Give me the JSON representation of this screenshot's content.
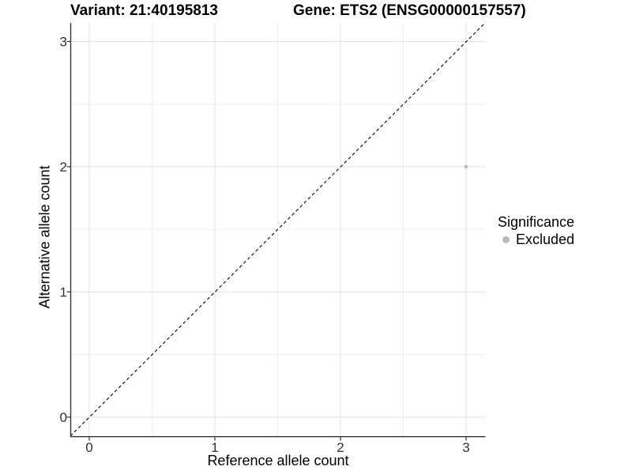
{
  "header": {
    "variant_title": "Variant: 21:40195813",
    "gene_title": "Gene: ETS2 (ENSG00000157557)"
  },
  "axes": {
    "x": {
      "label": "Reference allele count",
      "tick_labels": [
        "0",
        "1",
        "2",
        "3"
      ]
    },
    "y": {
      "label": "Alternative allele count",
      "tick_labels": [
        "0",
        "1",
        "2",
        "3"
      ]
    }
  },
  "legend": {
    "title": "Significance",
    "items": [
      {
        "label": "Excluded",
        "color": "#bababa"
      }
    ]
  },
  "colors": {
    "background": "#ffffff",
    "grid_major": "#e2e2e2",
    "grid_minor": "#eeeeee",
    "axis_line": "#333333",
    "tick_label": "#303030",
    "reference_line": "#000000",
    "point": "#bababa"
  },
  "chart_data": {
    "type": "scatter",
    "title": "Variant: 21:40195813 | Gene: ETS2 (ENSG00000157557)",
    "xlabel": "Reference allele count",
    "ylabel": "Alternative allele count",
    "xlim": [
      -0.15,
      3.15
    ],
    "ylim": [
      -0.15,
      3.15
    ],
    "x_ticks": [
      0,
      1,
      2,
      3
    ],
    "y_ticks": [
      0,
      1,
      2,
      3
    ],
    "x_minor_ticks": [
      0.5,
      1.5,
      2.5
    ],
    "y_minor_ticks": [
      0.5,
      1.5,
      2.5
    ],
    "grid": true,
    "legend_position": "right",
    "series": [
      {
        "name": "Excluded",
        "color": "#bababa",
        "points": [
          {
            "x": 3,
            "y": 2
          }
        ]
      }
    ],
    "reference_line": {
      "type": "identity y=x",
      "style": "dashed",
      "color": "#000000"
    }
  }
}
